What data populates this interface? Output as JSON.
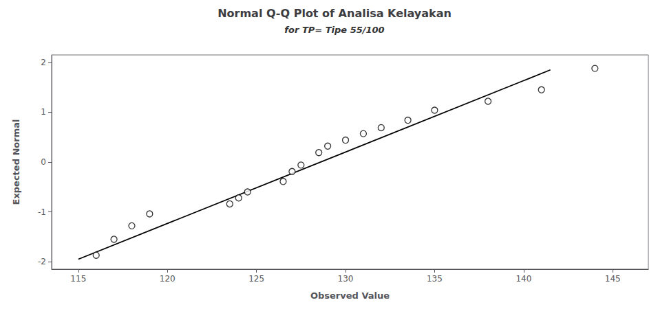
{
  "chart_data": {
    "type": "scatter",
    "title": "Normal Q-Q Plot of Analisa Kelayakan",
    "subtitle": "for TP= Tipe 55/100",
    "xlabel": "Observed Value",
    "ylabel": "Expected Normal",
    "xlim": [
      113.5,
      147
    ],
    "ylim": [
      -2.15,
      2.15
    ],
    "xticks": [
      115,
      120,
      125,
      130,
      135,
      140,
      145
    ],
    "yticks": [
      -2,
      -1,
      0,
      1,
      2
    ],
    "grid": false,
    "series": [
      {
        "type": "line",
        "color": "black",
        "line_style": "solid",
        "x": [
          115.0,
          141.5
        ],
        "values": [
          -1.95,
          1.85
        ]
      },
      {
        "type": "scatter",
        "color": "black",
        "marker": "open_circle",
        "x": [
          116.0,
          117.0,
          118.0,
          119.0,
          123.5,
          124.0,
          124.5,
          126.5,
          127.0,
          127.5,
          128.5,
          129.0,
          130.0,
          131.0,
          132.0,
          133.5,
          135.0,
          138.0,
          141.0,
          144.0
        ],
        "values": [
          -1.87,
          -1.55,
          -1.28,
          -1.04,
          -0.84,
          -0.72,
          -0.6,
          -0.39,
          -0.19,
          -0.06,
          0.19,
          0.32,
          0.44,
          0.57,
          0.69,
          0.84,
          1.04,
          1.22,
          1.45,
          1.88
        ]
      }
    ]
  }
}
